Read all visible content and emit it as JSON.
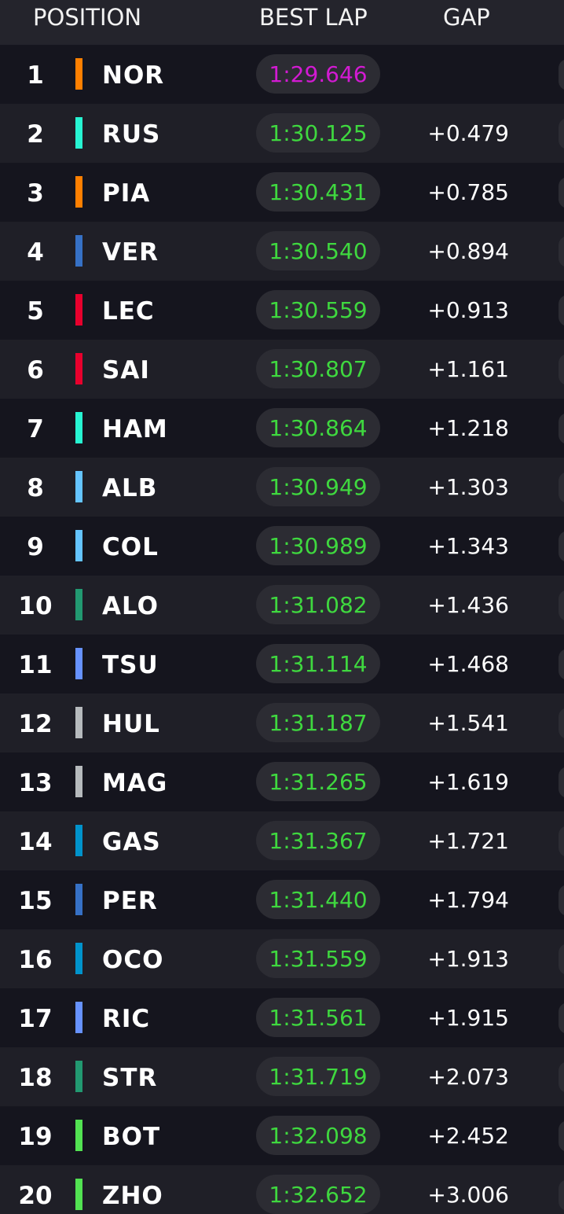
{
  "header": {
    "position": "POSITION",
    "best_lap": "BEST LAP",
    "gap": "GAP"
  },
  "table": {
    "rows": [
      {
        "position": "1",
        "team_color": "#ff8000",
        "driver": "NOR",
        "best_lap": "1:29.646",
        "lap_color": "#d21ad2"
      },
      {
        "position": "2",
        "team_color": "#27f4d2",
        "driver": "RUS",
        "best_lap": "1:30.125",
        "lap_color": "#3fd83f",
        "gap": "+0.479"
      },
      {
        "position": "3",
        "team_color": "#ff8000",
        "driver": "PIA",
        "best_lap": "1:30.431",
        "lap_color": "#3fd83f",
        "gap": "+0.785"
      },
      {
        "position": "4",
        "team_color": "#3671c6",
        "driver": "VER",
        "best_lap": "1:30.540",
        "lap_color": "#3fd83f",
        "gap": "+0.894"
      },
      {
        "position": "5",
        "team_color": "#e8002d",
        "driver": "LEC",
        "best_lap": "1:30.559",
        "lap_color": "#3fd83f",
        "gap": "+0.913"
      },
      {
        "position": "6",
        "team_color": "#e8002d",
        "driver": "SAI",
        "best_lap": "1:30.807",
        "lap_color": "#3fd83f",
        "gap": "+1.161"
      },
      {
        "position": "7",
        "team_color": "#27f4d2",
        "driver": "HAM",
        "best_lap": "1:30.864",
        "lap_color": "#3fd83f",
        "gap": "+1.218"
      },
      {
        "position": "8",
        "team_color": "#64c4ff",
        "driver": "ALB",
        "best_lap": "1:30.949",
        "lap_color": "#3fd83f",
        "gap": "+1.303"
      },
      {
        "position": "9",
        "team_color": "#64c4ff",
        "driver": "COL",
        "best_lap": "1:30.989",
        "lap_color": "#3fd83f",
        "gap": "+1.343"
      },
      {
        "position": "10",
        "team_color": "#229971",
        "driver": "ALO",
        "best_lap": "1:31.082",
        "lap_color": "#3fd83f",
        "gap": "+1.436"
      },
      {
        "position": "11",
        "team_color": "#6692ff",
        "driver": "TSU",
        "best_lap": "1:31.114",
        "lap_color": "#3fd83f",
        "gap": "+1.468"
      },
      {
        "position": "12",
        "team_color": "#b6babd",
        "driver": "HUL",
        "best_lap": "1:31.187",
        "lap_color": "#3fd83f",
        "gap": "+1.541"
      },
      {
        "position": "13",
        "team_color": "#b6babd",
        "driver": "MAG",
        "best_lap": "1:31.265",
        "lap_color": "#3fd83f",
        "gap": "+1.619"
      },
      {
        "position": "14",
        "team_color": "#0093cc",
        "driver": "GAS",
        "best_lap": "1:31.367",
        "lap_color": "#3fd83f",
        "gap": "+1.721"
      },
      {
        "position": "15",
        "team_color": "#3671c6",
        "driver": "PER",
        "best_lap": "1:31.440",
        "lap_color": "#3fd83f",
        "gap": "+1.794"
      },
      {
        "position": "16",
        "team_color": "#0093cc",
        "driver": "OCO",
        "best_lap": "1:31.559",
        "lap_color": "#3fd83f",
        "gap": "+1.913"
      },
      {
        "position": "17",
        "team_color": "#6692ff",
        "driver": "RIC",
        "best_lap": "1:31.561",
        "lap_color": "#3fd83f",
        "gap": "+1.915"
      },
      {
        "position": "18",
        "team_color": "#229971",
        "driver": "STR",
        "best_lap": "1:31.719",
        "lap_color": "#3fd83f",
        "gap": "+2.073"
      },
      {
        "position": "19",
        "team_color": "#52e252",
        "driver": "BOT",
        "best_lap": "1:32.098",
        "lap_color": "#3fd83f",
        "gap": "+2.452"
      },
      {
        "position": "20",
        "team_color": "#52e252",
        "driver": "ZHO",
        "best_lap": "1:32.652",
        "lap_color": "#3fd83f",
        "gap": "+3.006"
      }
    ]
  }
}
